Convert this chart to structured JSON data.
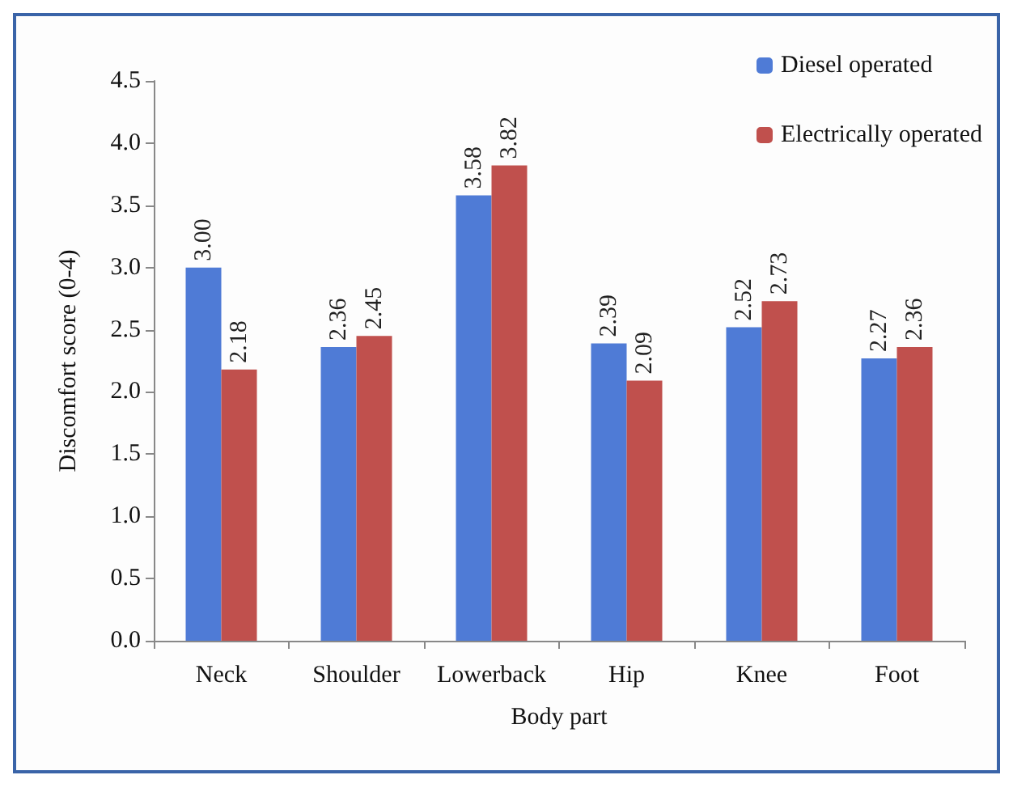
{
  "chart_data": {
    "type": "bar",
    "xlabel": "Body part",
    "ylabel": "Discomfort score (0-4)",
    "categories": [
      "Neck",
      "Shoulder",
      "Lowerback",
      "Hip",
      "Knee",
      "Foot"
    ],
    "series": [
      {
        "name": "Diesel operated",
        "color": "#4f7bd6",
        "values": [
          3.0,
          2.36,
          3.58,
          2.39,
          2.52,
          2.27
        ],
        "value_labels": [
          "3.00",
          "2.36",
          "3.58",
          "2.39",
          "2.52",
          "2.27"
        ]
      },
      {
        "name": "Electrically operated",
        "color": "#c0504d",
        "values": [
          2.18,
          2.45,
          3.82,
          2.09,
          2.73,
          2.36
        ],
        "value_labels": [
          "2.18",
          "2.45",
          "3.82",
          "2.09",
          "2.73",
          "2.36"
        ]
      }
    ],
    "ylim": [
      0,
      4.5
    ],
    "yticks": [
      {
        "value": 0,
        "label": "0.0"
      },
      {
        "value": 0.5,
        "label": "0.5"
      },
      {
        "value": 1,
        "label": "1.0"
      },
      {
        "value": 1.5,
        "label": "1.5"
      },
      {
        "value": 2,
        "label": "2.0"
      },
      {
        "value": 2.5,
        "label": "2.5"
      },
      {
        "value": 3,
        "label": "3.0"
      },
      {
        "value": 3.5,
        "label": "3.5"
      },
      {
        "value": 4,
        "label": "4.0"
      },
      {
        "value": 4.5,
        "label": "4.5"
      }
    ],
    "grid": false,
    "legend": "top right"
  }
}
